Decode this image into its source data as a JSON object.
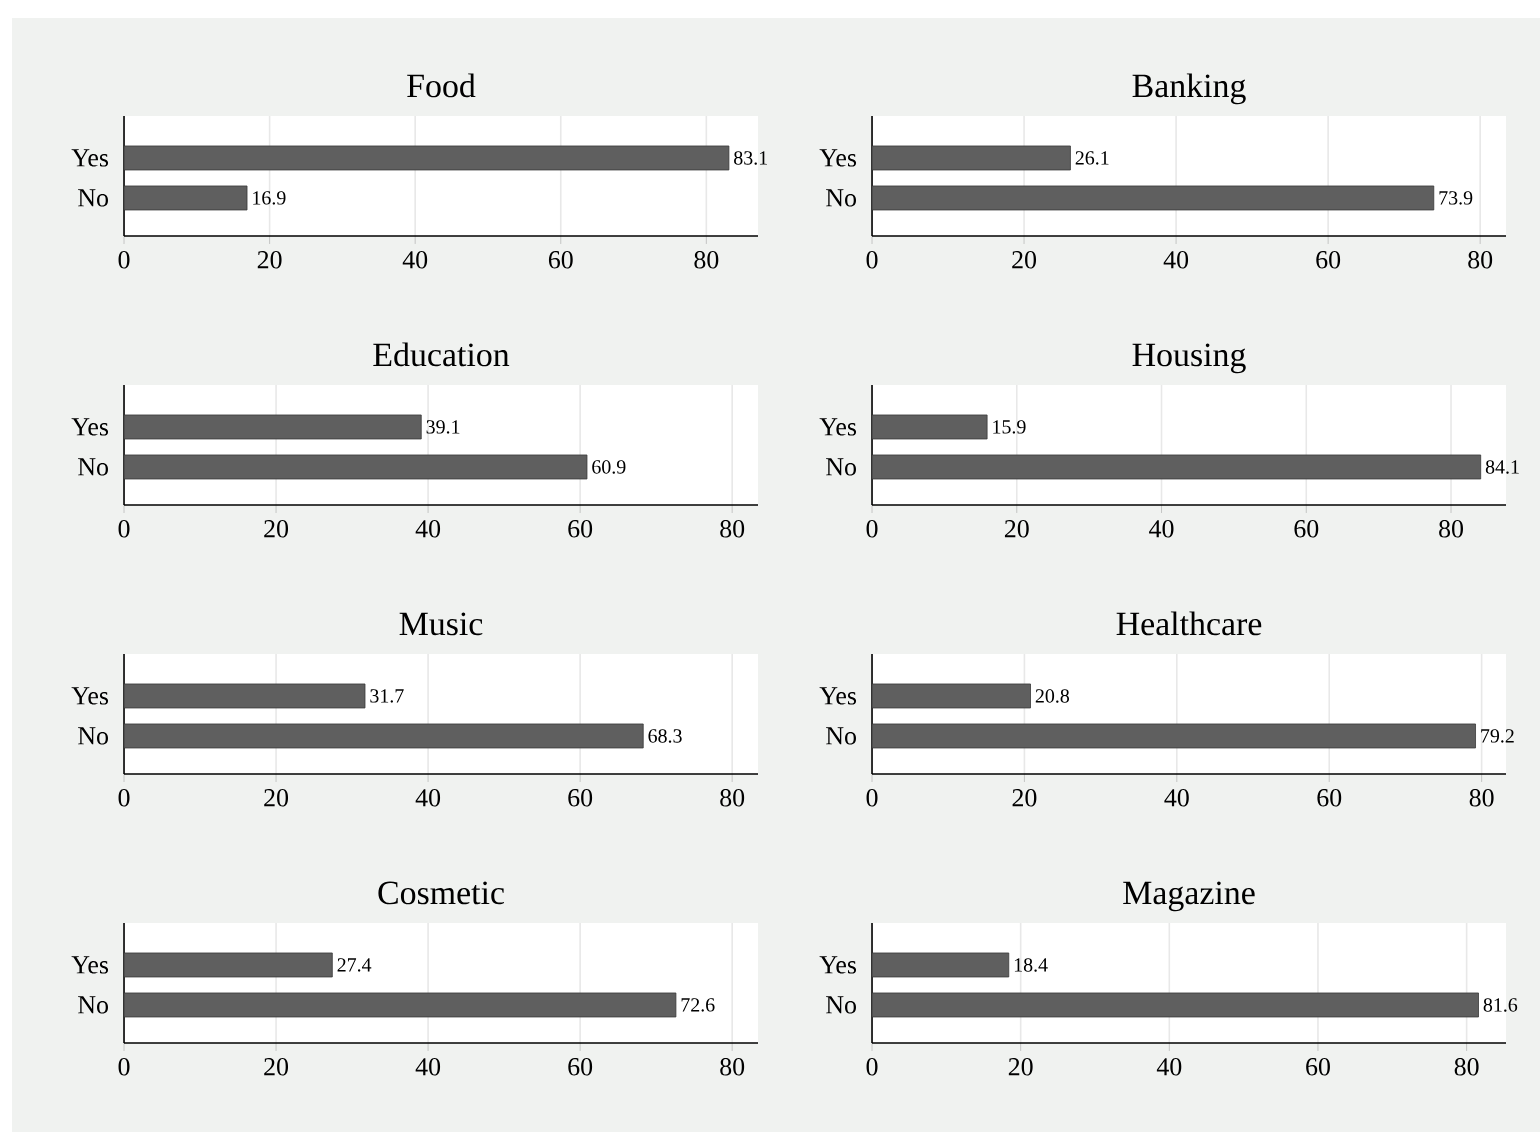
{
  "chart_data": [
    {
      "type": "bar",
      "orientation": "horizontal",
      "title": "Food",
      "categories": [
        "Yes",
        "No"
      ],
      "values": [
        83.1,
        16.9
      ],
      "color": "#5f5f5f",
      "xlim": [
        0,
        87.1
      ],
      "xticks": [
        0,
        20,
        40,
        60,
        80
      ],
      "grid": "x",
      "data_labels": true
    },
    {
      "type": "bar",
      "orientation": "horizontal",
      "title": "Banking",
      "categories": [
        "Yes",
        "No"
      ],
      "values": [
        26.1,
        73.9
      ],
      "color": "#5f5f5f",
      "xlim": [
        0,
        83.4
      ],
      "xticks": [
        0,
        20,
        40,
        60,
        80
      ],
      "grid": "x",
      "data_labels": true
    },
    {
      "type": "bar",
      "orientation": "horizontal",
      "title": "Education",
      "categories": [
        "Yes",
        "No"
      ],
      "values": [
        39.1,
        60.9
      ],
      "color": "#5f5f5f",
      "xlim": [
        0,
        83.4
      ],
      "xticks": [
        0,
        20,
        40,
        60,
        80
      ],
      "grid": "x",
      "data_labels": true
    },
    {
      "type": "bar",
      "orientation": "horizontal",
      "title": "Housing",
      "categories": [
        "Yes",
        "No"
      ],
      "values": [
        15.9,
        84.1
      ],
      "color": "#5f5f5f",
      "xlim": [
        0,
        87.6
      ],
      "xticks": [
        0,
        20,
        40,
        60,
        80
      ],
      "grid": "x",
      "data_labels": true
    },
    {
      "type": "bar",
      "orientation": "horizontal",
      "title": "Music",
      "categories": [
        "Yes",
        "No"
      ],
      "values": [
        31.7,
        68.3
      ],
      "color": "#5f5f5f",
      "xlim": [
        0,
        83.4
      ],
      "xticks": [
        0,
        20,
        40,
        60,
        80
      ],
      "grid": "x",
      "data_labels": true
    },
    {
      "type": "bar",
      "orientation": "horizontal",
      "title": "Healthcare",
      "categories": [
        "Yes",
        "No"
      ],
      "values": [
        20.8,
        79.2
      ],
      "color": "#5f5f5f",
      "xlim": [
        0,
        83.2
      ],
      "xticks": [
        0,
        20,
        40,
        60,
        80
      ],
      "grid": "x",
      "data_labels": true
    },
    {
      "type": "bar",
      "orientation": "horizontal",
      "title": "Cosmetic",
      "categories": [
        "Yes",
        "No"
      ],
      "values": [
        27.4,
        72.6
      ],
      "color": "#5f5f5f",
      "xlim": [
        0,
        83.4
      ],
      "xticks": [
        0,
        20,
        40,
        60,
        80
      ],
      "grid": "x",
      "data_labels": true
    },
    {
      "type": "bar",
      "orientation": "horizontal",
      "title": "Magazine",
      "categories": [
        "Yes",
        "No"
      ],
      "values": [
        18.4,
        81.6
      ],
      "color": "#5f5f5f",
      "xlim": [
        0,
        85.3
      ],
      "xticks": [
        0,
        20,
        40,
        60,
        80
      ],
      "grid": "x",
      "data_labels": true
    }
  ]
}
